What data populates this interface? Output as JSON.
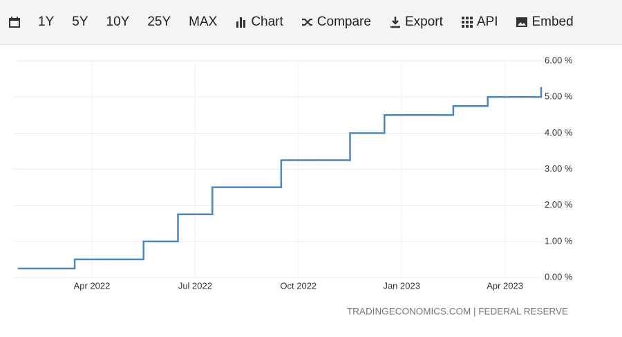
{
  "toolbar": {
    "buttons": [
      "1Y",
      "5Y",
      "10Y",
      "25Y",
      "MAX",
      "Chart",
      "Compare",
      "Export",
      "API",
      "Embed"
    ]
  },
  "chart_data": {
    "type": "step",
    "x": [
      "2022-02",
      "2022-03",
      "2022-04",
      "2022-05",
      "2022-06",
      "2022-07",
      "2022-08",
      "2022-09",
      "2022-10",
      "2022-11",
      "2022-12",
      "2023-01",
      "2023-02",
      "2023-03",
      "2023-04",
      "2023-05"
    ],
    "series": [
      {
        "color": "#4a87bd",
        "values": [
          0.25,
          0.5,
          0.5,
          1.0,
          1.75,
          2.5,
          2.5,
          3.25,
          3.25,
          4.0,
          4.5,
          4.5,
          4.75,
          5.0,
          5.0,
          5.25
        ]
      }
    ],
    "xlim": [
      "2022-02",
      "2023-05"
    ],
    "xticks": [
      {
        "value": "2022-04",
        "label": "Apr 2022"
      },
      {
        "value": "2022-07",
        "label": "Jul 2022"
      },
      {
        "value": "2022-10",
        "label": "Oct 2022"
      },
      {
        "value": "2023-01",
        "label": "Jan 2023"
      },
      {
        "value": "2023-04",
        "label": "Apr 2023"
      }
    ],
    "ylim": [
      0,
      6
    ],
    "yticks": [
      {
        "value": 0,
        "label": "0.00 %"
      },
      {
        "value": 1,
        "label": "1.00 %"
      },
      {
        "value": 2,
        "label": "2.00 %"
      },
      {
        "value": 3,
        "label": "3.00 %"
      },
      {
        "value": 4,
        "label": "4.00 %"
      },
      {
        "value": 5,
        "label": "5.00 %"
      },
      {
        "value": 6,
        "label": "6.00 %"
      }
    ],
    "grid": true,
    "source": "TRADINGECONOMICS.COM | FEDERAL RESERVE"
  }
}
